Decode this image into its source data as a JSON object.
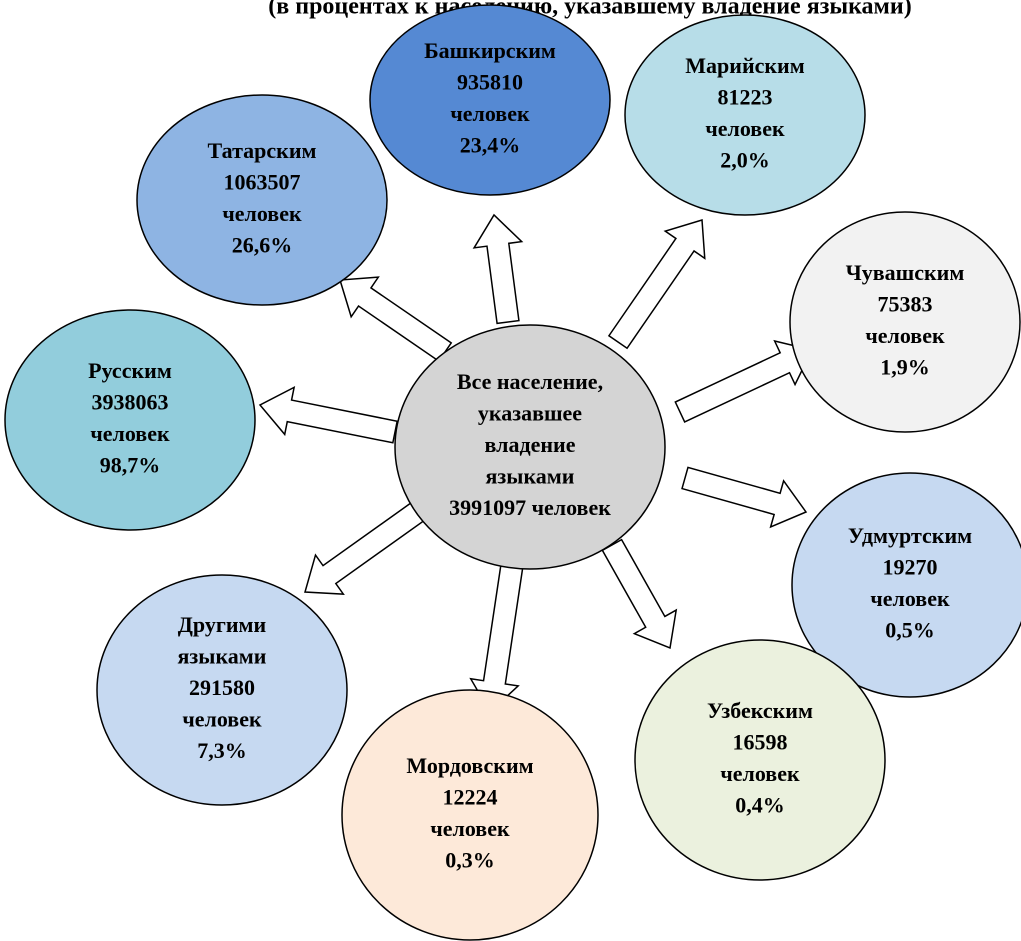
{
  "title": "(в процентах к населению, указавшему владение языками)",
  "center": {
    "lines": [
      "Все население,",
      "указавшее",
      "владение",
      "языками",
      "3991097 человек"
    ]
  },
  "nodes": [
    {
      "lines": [
        "Башкирским",
        "935810",
        "человек",
        "23,4%"
      ]
    },
    {
      "lines": [
        "Марийским",
        "81223",
        "человек",
        "2,0%"
      ]
    },
    {
      "lines": [
        "Татарским",
        "1063507",
        "человек",
        "26,6%"
      ]
    },
    {
      "lines": [
        "Чувашским",
        "75383",
        "человек",
        "1,9%"
      ]
    },
    {
      "lines": [
        "Русским",
        "3938063",
        "человек",
        "98,7%"
      ]
    },
    {
      "lines": [
        "Удмуртским",
        "19270",
        "человек",
        "0,5%"
      ]
    },
    {
      "lines": [
        "Другими",
        "языками",
        "291580",
        "человек",
        "7,3%"
      ]
    },
    {
      "lines": [
        "Узбекским",
        "16598",
        "человек",
        "0,4%"
      ]
    },
    {
      "lines": [
        "Мордовским",
        "12224",
        "человек",
        "0,3%"
      ]
    }
  ]
}
